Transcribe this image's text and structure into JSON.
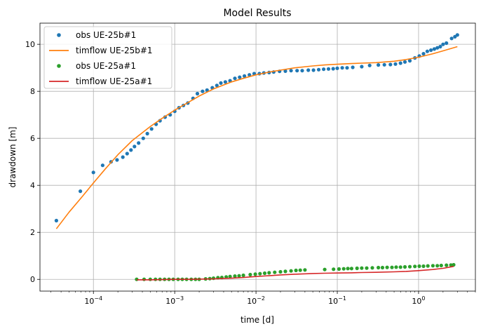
{
  "chart_data": {
    "type": "scatter",
    "title": "Model Results",
    "xlabel": "time [d]",
    "ylabel": "drawdown [m]",
    "xscale": "log",
    "xlim": [
      2.2e-05,
      5.0
    ],
    "ylim": [
      -0.5,
      10.9
    ],
    "grid": true,
    "legend_position": "top-left",
    "x_ticks": [
      {
        "value": 0.0001,
        "base": "10",
        "exp": "−4"
      },
      {
        "value": 0.001,
        "base": "10",
        "exp": "−3"
      },
      {
        "value": 0.01,
        "base": "10",
        "exp": "−2"
      },
      {
        "value": 0.1,
        "base": "10",
        "exp": "−1"
      },
      {
        "value": 1,
        "base": "10",
        "exp": "0"
      }
    ],
    "y_ticks": [
      {
        "value": 0,
        "label": "0"
      },
      {
        "value": 2,
        "label": "2"
      },
      {
        "value": 4,
        "label": "4"
      },
      {
        "value": 6,
        "label": "6"
      },
      {
        "value": 8,
        "label": "8"
      },
      {
        "value": 10,
        "label": "10"
      }
    ],
    "series": [
      {
        "name": "obs UE-25b#1",
        "kind": "points",
        "color": "#1f77b4",
        "x": [
          3.5e-05,
          6.9e-05,
          0.0001,
          0.00013,
          0.000165,
          0.000195,
          0.00023,
          0.00026,
          0.00029,
          0.00032,
          0.00036,
          0.00041,
          0.00046,
          0.00052,
          0.00059,
          0.00066,
          0.00076,
          0.00088,
          0.001,
          0.00113,
          0.00128,
          0.00145,
          0.00168,
          0.0019,
          0.0022,
          0.0025,
          0.0029,
          0.0033,
          0.0037,
          0.0042,
          0.0048,
          0.0055,
          0.0063,
          0.0072,
          0.0083,
          0.0095,
          0.011,
          0.0125,
          0.0145,
          0.0165,
          0.0195,
          0.023,
          0.027,
          0.032,
          0.037,
          0.044,
          0.051,
          0.059,
          0.068,
          0.078,
          0.089,
          0.1,
          0.115,
          0.132,
          0.155,
          0.2,
          0.25,
          0.32,
          0.38,
          0.45,
          0.52,
          0.6,
          0.68,
          0.78,
          0.9,
          1.02,
          1.15,
          1.28,
          1.42,
          1.56,
          1.7,
          1.85,
          2.0,
          2.2,
          2.55,
          2.8,
          3.0
        ],
        "y": [
          2.5,
          3.75,
          4.55,
          4.85,
          5.0,
          5.08,
          5.2,
          5.35,
          5.5,
          5.65,
          5.8,
          6.0,
          6.2,
          6.4,
          6.6,
          6.75,
          6.9,
          7.0,
          7.15,
          7.3,
          7.4,
          7.5,
          7.7,
          7.9,
          8.0,
          8.05,
          8.15,
          8.25,
          8.35,
          8.4,
          8.45,
          8.55,
          8.6,
          8.65,
          8.7,
          8.75,
          8.75,
          8.78,
          8.8,
          8.82,
          8.85,
          8.86,
          8.88,
          8.88,
          8.88,
          8.9,
          8.9,
          8.92,
          8.94,
          8.95,
          8.96,
          8.98,
          9.0,
          9.0,
          9.02,
          9.05,
          9.1,
          9.12,
          9.13,
          9.14,
          9.16,
          9.2,
          9.25,
          9.3,
          9.42,
          9.5,
          9.6,
          9.7,
          9.75,
          9.8,
          9.85,
          9.9,
          10.0,
          10.05,
          10.25,
          10.32,
          10.4
        ]
      },
      {
        "name": "timflow UE-25b#1",
        "kind": "line",
        "color": "#ff7f0e",
        "x": [
          3.5e-05,
          5e-05,
          7e-05,
          0.0001,
          0.00014,
          0.0002,
          0.0003,
          0.0005,
          0.0007,
          0.001,
          0.0015,
          0.002,
          0.003,
          0.005,
          0.007,
          0.01,
          0.015,
          0.02,
          0.03,
          0.05,
          0.07,
          0.1,
          0.15,
          0.2,
          0.3,
          0.5,
          0.7,
          1.0,
          1.5,
          2.0,
          3.0
        ],
        "y": [
          2.15,
          2.85,
          3.45,
          4.1,
          4.7,
          5.3,
          5.9,
          6.5,
          6.85,
          7.2,
          7.55,
          7.8,
          8.1,
          8.4,
          8.55,
          8.7,
          8.83,
          8.9,
          9.0,
          9.08,
          9.12,
          9.15,
          9.18,
          9.2,
          9.22,
          9.28,
          9.35,
          9.45,
          9.6,
          9.72,
          9.9
        ]
      },
      {
        "name": "obs UE-25a#1",
        "kind": "points",
        "color": "#2ca02c",
        "x": [
          0.00034,
          0.00042,
          0.0005,
          0.00058,
          0.00066,
          0.00075,
          0.00085,
          0.00096,
          0.0011,
          0.00124,
          0.0014,
          0.0016,
          0.0018,
          0.002,
          0.0024,
          0.0027,
          0.003,
          0.0034,
          0.0038,
          0.0043,
          0.0048,
          0.0055,
          0.0062,
          0.007,
          0.0085,
          0.0098,
          0.0112,
          0.0128,
          0.0145,
          0.017,
          0.02,
          0.023,
          0.027,
          0.031,
          0.035,
          0.04,
          0.07,
          0.09,
          0.105,
          0.12,
          0.135,
          0.15,
          0.175,
          0.2,
          0.23,
          0.27,
          0.32,
          0.36,
          0.41,
          0.47,
          0.53,
          0.6,
          0.68,
          0.78,
          0.9,
          1.02,
          1.15,
          1.3,
          1.5,
          1.7,
          1.9,
          2.2,
          2.5,
          2.7
        ],
        "y": [
          0.0,
          0.0,
          0.0,
          0.0,
          0.0,
          0.0,
          0.0,
          0.0,
          0.0,
          0.0,
          0.0,
          0.0,
          0.0,
          0.0,
          0.02,
          0.03,
          0.05,
          0.07,
          0.08,
          0.1,
          0.12,
          0.14,
          0.15,
          0.17,
          0.2,
          0.22,
          0.24,
          0.26,
          0.28,
          0.3,
          0.32,
          0.34,
          0.36,
          0.38,
          0.39,
          0.4,
          0.42,
          0.43,
          0.44,
          0.45,
          0.46,
          0.46,
          0.47,
          0.48,
          0.48,
          0.49,
          0.5,
          0.5,
          0.51,
          0.51,
          0.52,
          0.52,
          0.53,
          0.54,
          0.55,
          0.56,
          0.56,
          0.57,
          0.58,
          0.58,
          0.59,
          0.6,
          0.61,
          0.62
        ]
      },
      {
        "name": "timflow UE-25a#1",
        "kind": "line",
        "color": "#d62728",
        "x": [
          0.00034,
          0.0005,
          0.0007,
          0.001,
          0.0015,
          0.002,
          0.003,
          0.005,
          0.007,
          0.01,
          0.015,
          0.02,
          0.03,
          0.05,
          0.07,
          0.1,
          0.15,
          0.2,
          0.3,
          0.5,
          0.7,
          1.0,
          1.5,
          2.0,
          2.7
        ],
        "y": [
          -0.02,
          -0.02,
          -0.01,
          0.0,
          0.0,
          0.01,
          0.02,
          0.05,
          0.08,
          0.12,
          0.16,
          0.19,
          0.22,
          0.25,
          0.26,
          0.27,
          0.28,
          0.29,
          0.3,
          0.32,
          0.34,
          0.37,
          0.42,
          0.47,
          0.55
        ]
      }
    ]
  }
}
